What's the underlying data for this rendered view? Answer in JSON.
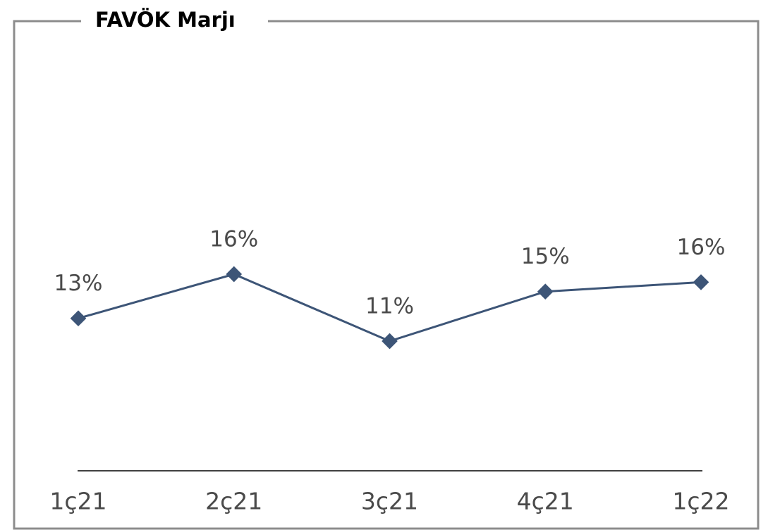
{
  "chart_data": {
    "type": "line",
    "title": "FAVÖK Marjı",
    "categories": [
      "1ç21",
      "2ç21",
      "3ç21",
      "4ç21",
      "1ç22"
    ],
    "values": [
      13.1,
      16.4,
      11.4,
      15.1,
      15.8
    ],
    "value_labels": [
      "13%",
      "16%",
      "11%",
      "15%",
      "16%"
    ],
    "color": "#3d5577"
  }
}
